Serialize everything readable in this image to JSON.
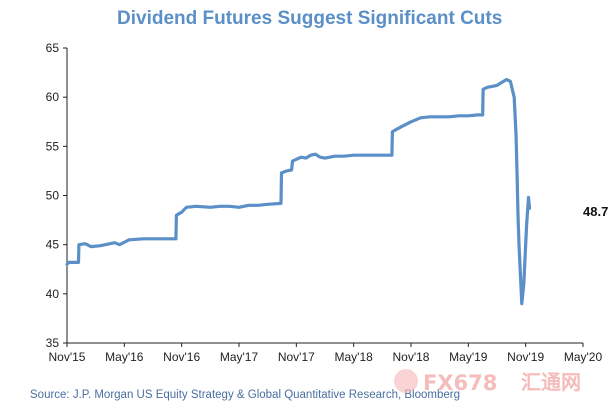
{
  "chart_data": {
    "type": "line",
    "title": "Dividend Futures Suggest Significant Cuts",
    "xlabel": "",
    "ylabel": "",
    "ylim": [
      35,
      65
    ],
    "y_ticks": [
      "35",
      "40",
      "45",
      "50",
      "55",
      "60",
      "65"
    ],
    "x_ticks": [
      "Nov'15",
      "May'16",
      "Nov'16",
      "May'17",
      "Nov'17",
      "May'18",
      "Nov'18",
      "May'19",
      "Nov'19",
      "May'20"
    ],
    "xlim": [
      0,
      54
    ],
    "grid": false,
    "legend": "none",
    "series": [
      {
        "color": "#5b8fc7",
        "x": [
          0,
          0.2,
          1.2,
          1.25,
          1.9,
          2.5,
          3.5,
          4.5,
          5.0,
          5.5,
          6.5,
          8,
          10,
          11.4,
          11.45,
          12,
          12.5,
          13.5,
          15,
          16,
          17,
          18,
          19,
          20,
          21,
          22.4,
          22.45,
          23,
          23.5,
          23.6,
          24.5,
          25,
          25.5,
          26,
          26.5,
          27,
          27.5,
          28,
          29,
          30,
          31,
          32,
          33,
          34.0,
          34.05,
          35,
          36,
          37,
          38,
          39,
          40,
          41,
          42,
          43,
          43.5,
          43.55,
          44,
          45,
          45.5,
          46,
          46.4,
          46.8,
          47.0,
          47.1,
          47.2,
          47.3,
          47.45,
          47.6,
          47.8,
          48.1,
          48.3,
          48.4
        ],
        "values": [
          43.0,
          43.2,
          43.2,
          45.0,
          45.1,
          44.8,
          44.9,
          45.1,
          45.2,
          45.0,
          45.5,
          45.6,
          45.6,
          45.6,
          48.0,
          48.3,
          48.8,
          48.9,
          48.8,
          48.9,
          48.9,
          48.8,
          49.0,
          49.0,
          49.1,
          49.2,
          52.3,
          52.5,
          52.6,
          53.5,
          53.9,
          53.8,
          54.1,
          54.2,
          53.9,
          53.8,
          53.9,
          54.0,
          54.0,
          54.1,
          54.1,
          54.1,
          54.1,
          54.1,
          56.5,
          57.0,
          57.5,
          57.9,
          58.0,
          58.0,
          58.0,
          58.1,
          58.1,
          58.2,
          58.2,
          60.8,
          61.0,
          61.2,
          61.5,
          61.8,
          61.6,
          60.0,
          56.0,
          52.0,
          48.0,
          45.0,
          42.0,
          39.0,
          41.0,
          47.0,
          49.8,
          48.7
        ],
        "end_label": "48.7"
      }
    ],
    "source_text": "Source: J.P. Morgan US Equity Strategy & Global Quantitative Research, Bloomberg"
  },
  "watermark": {
    "text": "FX678",
    "cjk": "汇通网"
  }
}
